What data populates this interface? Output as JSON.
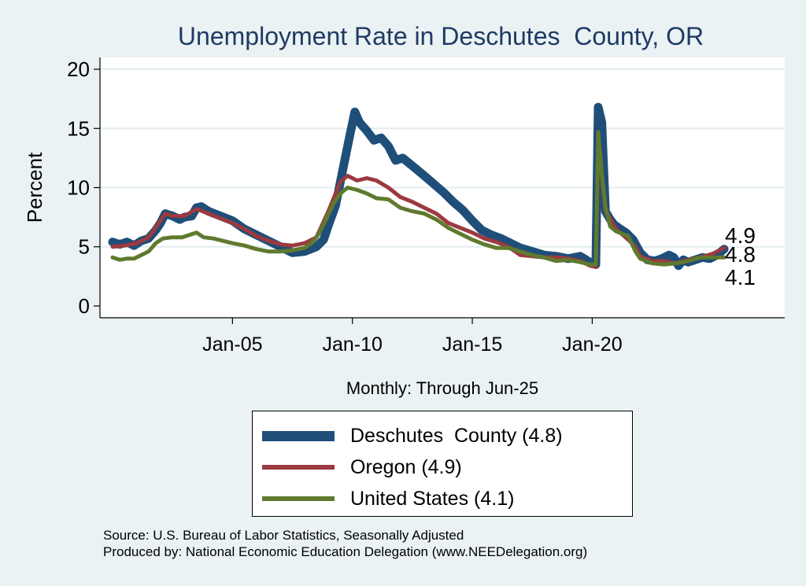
{
  "chart_data": {
    "type": "line",
    "title": "Unemployment Rate in Deschutes  County, OR",
    "xlabel": "Monthly: Through Jun-25",
    "ylabel": "Percent",
    "x_range": [
      2000.0,
      2025.5
    ],
    "ylim": [
      -1,
      21
    ],
    "y_ticks": [
      0,
      5,
      10,
      15,
      20
    ],
    "x_ticks": [
      {
        "year": 2005,
        "label": "Jan-05"
      },
      {
        "year": 2010,
        "label": "Jan-10"
      },
      {
        "year": 2015,
        "label": "Jan-15"
      },
      {
        "year": 2020,
        "label": "Jan-20"
      }
    ],
    "grid": true,
    "series": [
      {
        "name": "Deschutes County",
        "color": "#1f4e79",
        "last_value": "4.8",
        "points": [
          [
            2000.0,
            5.4
          ],
          [
            2000.3,
            5.2
          ],
          [
            2000.6,
            5.4
          ],
          [
            2000.9,
            5.1
          ],
          [
            2001.2,
            5.5
          ],
          [
            2001.5,
            5.7
          ],
          [
            2001.8,
            6.4
          ],
          [
            2002.0,
            7.0
          ],
          [
            2002.2,
            7.8
          ],
          [
            2002.5,
            7.6
          ],
          [
            2002.8,
            7.3
          ],
          [
            2003.0,
            7.5
          ],
          [
            2003.3,
            7.6
          ],
          [
            2003.5,
            8.3
          ],
          [
            2003.7,
            8.4
          ],
          [
            2004.0,
            8.0
          ],
          [
            2004.5,
            7.6
          ],
          [
            2005.0,
            7.2
          ],
          [
            2005.5,
            6.5
          ],
          [
            2006.0,
            6.0
          ],
          [
            2006.5,
            5.5
          ],
          [
            2007.0,
            5.0
          ],
          [
            2007.5,
            4.5
          ],
          [
            2008.0,
            4.6
          ],
          [
            2008.5,
            5.0
          ],
          [
            2008.8,
            5.6
          ],
          [
            2009.0,
            6.8
          ],
          [
            2009.3,
            8.5
          ],
          [
            2009.6,
            11.5
          ],
          [
            2009.9,
            14.5
          ],
          [
            2010.1,
            16.4
          ],
          [
            2010.3,
            15.5
          ],
          [
            2010.6,
            14.8
          ],
          [
            2010.9,
            14.0
          ],
          [
            2011.2,
            14.2
          ],
          [
            2011.5,
            13.5
          ],
          [
            2011.8,
            12.3
          ],
          [
            2012.1,
            12.5
          ],
          [
            2012.4,
            12.0
          ],
          [
            2012.7,
            11.5
          ],
          [
            2013.0,
            11.0
          ],
          [
            2013.4,
            10.3
          ],
          [
            2013.8,
            9.6
          ],
          [
            2014.2,
            8.8
          ],
          [
            2014.6,
            8.1
          ],
          [
            2015.0,
            7.2
          ],
          [
            2015.4,
            6.4
          ],
          [
            2015.8,
            6.0
          ],
          [
            2016.2,
            5.7
          ],
          [
            2016.6,
            5.3
          ],
          [
            2017.0,
            4.9
          ],
          [
            2017.5,
            4.6
          ],
          [
            2018.0,
            4.3
          ],
          [
            2018.5,
            4.2
          ],
          [
            2019.0,
            4.0
          ],
          [
            2019.5,
            4.2
          ],
          [
            2019.9,
            3.7
          ],
          [
            2020.1,
            3.6
          ],
          [
            2020.15,
            3.5
          ],
          [
            2020.25,
            16.8
          ],
          [
            2020.4,
            15.5
          ],
          [
            2020.55,
            8.0
          ],
          [
            2020.75,
            7.3
          ],
          [
            2020.9,
            6.9
          ],
          [
            2021.1,
            6.6
          ],
          [
            2021.4,
            6.2
          ],
          [
            2021.7,
            5.6
          ],
          [
            2022.0,
            4.5
          ],
          [
            2022.3,
            3.9
          ],
          [
            2022.6,
            3.8
          ],
          [
            2022.9,
            4.0
          ],
          [
            2023.2,
            4.3
          ],
          [
            2023.4,
            4.1
          ],
          [
            2023.6,
            3.4
          ],
          [
            2023.8,
            3.9
          ],
          [
            2024.0,
            3.7
          ],
          [
            2024.3,
            3.9
          ],
          [
            2024.6,
            4.1
          ],
          [
            2024.9,
            4.0
          ],
          [
            2025.2,
            4.3
          ],
          [
            2025.5,
            4.8
          ]
        ]
      },
      {
        "name": "Oregon",
        "color": "#9b3a3f",
        "last_value": "4.9",
        "points": [
          [
            2000.0,
            5.0
          ],
          [
            2000.5,
            5.1
          ],
          [
            2001.0,
            5.3
          ],
          [
            2001.5,
            5.8
          ],
          [
            2002.0,
            7.2
          ],
          [
            2002.2,
            7.8
          ],
          [
            2002.5,
            7.6
          ],
          [
            2003.0,
            7.6
          ],
          [
            2003.5,
            8.2
          ],
          [
            2004.0,
            7.8
          ],
          [
            2004.5,
            7.4
          ],
          [
            2005.0,
            7.0
          ],
          [
            2005.5,
            6.5
          ],
          [
            2006.0,
            5.9
          ],
          [
            2006.5,
            5.5
          ],
          [
            2007.0,
            5.2
          ],
          [
            2007.5,
            5.1
          ],
          [
            2008.0,
            5.3
          ],
          [
            2008.5,
            5.8
          ],
          [
            2009.0,
            8.0
          ],
          [
            2009.5,
            10.5
          ],
          [
            2009.8,
            11.0
          ],
          [
            2010.2,
            10.6
          ],
          [
            2010.6,
            10.8
          ],
          [
            2011.0,
            10.6
          ],
          [
            2011.5,
            10.0
          ],
          [
            2012.0,
            9.2
          ],
          [
            2012.5,
            8.8
          ],
          [
            2013.0,
            8.3
          ],
          [
            2013.5,
            7.8
          ],
          [
            2014.0,
            7.0
          ],
          [
            2014.5,
            6.6
          ],
          [
            2015.0,
            6.2
          ],
          [
            2015.5,
            5.7
          ],
          [
            2016.0,
            5.4
          ],
          [
            2016.5,
            5.0
          ],
          [
            2017.0,
            4.3
          ],
          [
            2017.5,
            4.2
          ],
          [
            2018.0,
            4.1
          ],
          [
            2018.5,
            4.1
          ],
          [
            2019.0,
            4.0
          ],
          [
            2019.5,
            3.8
          ],
          [
            2019.9,
            3.4
          ],
          [
            2020.15,
            3.3
          ],
          [
            2020.25,
            13.5
          ],
          [
            2020.4,
            11.0
          ],
          [
            2020.55,
            8.0
          ],
          [
            2020.8,
            7.2
          ],
          [
            2021.0,
            6.5
          ],
          [
            2021.5,
            5.6
          ],
          [
            2021.8,
            5.0
          ],
          [
            2022.0,
            4.2
          ],
          [
            2022.5,
            3.8
          ],
          [
            2023.0,
            3.8
          ],
          [
            2023.5,
            3.6
          ],
          [
            2024.0,
            3.9
          ],
          [
            2024.5,
            4.1
          ],
          [
            2025.0,
            4.4
          ],
          [
            2025.5,
            4.9
          ]
        ]
      },
      {
        "name": "United States",
        "color": "#5f7a2e",
        "last_value": "4.1",
        "points": [
          [
            2000.0,
            4.1
          ],
          [
            2000.3,
            3.9
          ],
          [
            2000.6,
            4.0
          ],
          [
            2000.9,
            4.0
          ],
          [
            2001.2,
            4.3
          ],
          [
            2001.5,
            4.6
          ],
          [
            2001.8,
            5.3
          ],
          [
            2002.1,
            5.7
          ],
          [
            2002.5,
            5.8
          ],
          [
            2002.9,
            5.8
          ],
          [
            2003.2,
            6.0
          ],
          [
            2003.5,
            6.2
          ],
          [
            2003.8,
            5.8
          ],
          [
            2004.2,
            5.7
          ],
          [
            2004.6,
            5.5
          ],
          [
            2005.0,
            5.3
          ],
          [
            2005.5,
            5.1
          ],
          [
            2006.0,
            4.8
          ],
          [
            2006.5,
            4.6
          ],
          [
            2007.0,
            4.6
          ],
          [
            2007.5,
            4.7
          ],
          [
            2008.0,
            4.9
          ],
          [
            2008.3,
            5.3
          ],
          [
            2008.6,
            6.1
          ],
          [
            2008.9,
            7.3
          ],
          [
            2009.2,
            8.6
          ],
          [
            2009.5,
            9.5
          ],
          [
            2009.8,
            10.0
          ],
          [
            2010.2,
            9.8
          ],
          [
            2010.6,
            9.5
          ],
          [
            2011.0,
            9.1
          ],
          [
            2011.5,
            9.0
          ],
          [
            2012.0,
            8.3
          ],
          [
            2012.5,
            8.0
          ],
          [
            2013.0,
            7.8
          ],
          [
            2013.5,
            7.3
          ],
          [
            2014.0,
            6.6
          ],
          [
            2014.5,
            6.1
          ],
          [
            2015.0,
            5.6
          ],
          [
            2015.5,
            5.2
          ],
          [
            2016.0,
            4.9
          ],
          [
            2016.5,
            4.9
          ],
          [
            2017.0,
            4.6
          ],
          [
            2017.5,
            4.3
          ],
          [
            2018.0,
            4.1
          ],
          [
            2018.5,
            3.8
          ],
          [
            2019.0,
            3.9
          ],
          [
            2019.5,
            3.7
          ],
          [
            2019.9,
            3.5
          ],
          [
            2020.15,
            3.5
          ],
          [
            2020.25,
            14.7
          ],
          [
            2020.4,
            11.1
          ],
          [
            2020.55,
            8.4
          ],
          [
            2020.75,
            6.7
          ],
          [
            2021.0,
            6.3
          ],
          [
            2021.5,
            5.9
          ],
          [
            2021.8,
            4.6
          ],
          [
            2022.0,
            4.0
          ],
          [
            2022.5,
            3.6
          ],
          [
            2023.0,
            3.5
          ],
          [
            2023.5,
            3.6
          ],
          [
            2024.0,
            3.8
          ],
          [
            2024.5,
            4.1
          ],
          [
            2025.0,
            4.1
          ],
          [
            2025.5,
            4.1
          ]
        ]
      }
    ],
    "legend": [
      {
        "label": "Deschutes  County (4.8)",
        "color": "#1f4e79",
        "width": 13
      },
      {
        "label": "Oregon (4.9)",
        "color": "#9b3a3f",
        "width": 6
      },
      {
        "label": "United States (4.1)",
        "color": "#5f7a2e",
        "width": 6
      }
    ],
    "end_labels": [
      {
        "text": "4.9",
        "series": "Oregon"
      },
      {
        "text": "4.8",
        "series": "Deschutes County"
      },
      {
        "text": "4.1",
        "series": "United States"
      }
    ]
  },
  "footer": {
    "source": "Source: U.S. Bureau of Labor Statistics, Seasonally Adjusted",
    "produced_by": "Produced by: National Economic Education Delegation (www.NEEDelegation.org)"
  }
}
